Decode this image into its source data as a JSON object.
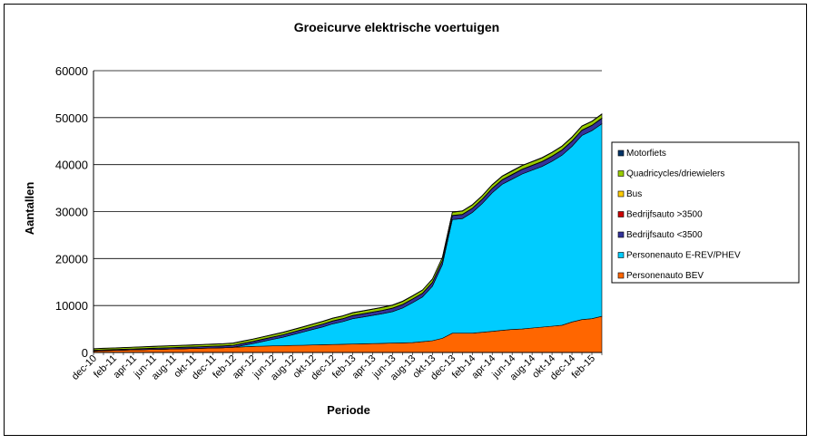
{
  "chart_data": {
    "type": "area",
    "stacked": true,
    "title": "Groeicurve elektrische voertuigen",
    "xlabel": "Periode",
    "ylabel": "Aantallen",
    "ylim": [
      0,
      60000
    ],
    "yticks": [
      0,
      10000,
      20000,
      30000,
      40000,
      50000,
      60000
    ],
    "grid": true,
    "legend_position": "right",
    "x": [
      "dec-10",
      "jan-11",
      "feb-11",
      "mrt-11",
      "apr-11",
      "mei-11",
      "jun-11",
      "jul-11",
      "aug-11",
      "sep-11",
      "okt-11",
      "nov-11",
      "dec-11",
      "jan-12",
      "feb-12",
      "mrt-12",
      "apr-12",
      "mei-12",
      "jun-12",
      "jul-12",
      "aug-12",
      "sep-12",
      "okt-12",
      "nov-12",
      "dec-12",
      "jan-13",
      "feb-13",
      "mrt-13",
      "apr-13",
      "mei-13",
      "jun-13",
      "jul-13",
      "aug-13",
      "sep-13",
      "okt-13",
      "nov-13",
      "dec-13",
      "jan-14",
      "feb-14",
      "mrt-14",
      "apr-14",
      "mei-14",
      "jun-14",
      "jul-14",
      "aug-14",
      "sep-14",
      "okt-14",
      "nov-14",
      "dec-14",
      "jan-15",
      "feb-15",
      "mrt-15"
    ],
    "xticks_shown": [
      "dec-10",
      "feb-11",
      "apr-11",
      "jun-11",
      "aug-11",
      "okt-11",
      "dec-11",
      "feb-12",
      "apr-12",
      "jun-12",
      "aug-12",
      "okt-12",
      "dec-12",
      "feb-13",
      "apr-13",
      "jun-13",
      "aug-13",
      "okt-13",
      "dec-13",
      "feb-14",
      "apr-14",
      "jun-14",
      "aug-14",
      "okt-14",
      "dec-14",
      "feb-15"
    ],
    "series": [
      {
        "name": "Personenauto BEV",
        "color": "#ff6600",
        "values": [
          300,
          400,
          450,
          500,
          550,
          600,
          650,
          700,
          750,
          800,
          850,
          900,
          950,
          1000,
          1100,
          1200,
          1300,
          1350,
          1400,
          1450,
          1500,
          1550,
          1600,
          1650,
          1700,
          1750,
          1800,
          1850,
          1900,
          1950,
          2000,
          2050,
          2100,
          2300,
          2500,
          3000,
          4100,
          4100,
          4100,
          4300,
          4500,
          4700,
          4900,
          5000,
          5200,
          5400,
          5600,
          5800,
          6500,
          7000,
          7200,
          7700
        ]
      },
      {
        "name": "Personenauto E-REV/PHEV",
        "color": "#00ccff",
        "values": [
          0,
          0,
          0,
          0,
          0,
          0,
          0,
          0,
          0,
          0,
          0,
          0,
          0,
          0,
          0,
          300,
          600,
          1000,
          1400,
          1800,
          2300,
          2800,
          3300,
          3800,
          4400,
          4800,
          5400,
          5700,
          6000,
          6300,
          6700,
          7400,
          8500,
          9500,
          11600,
          15700,
          24200,
          24400,
          25700,
          27400,
          29500,
          31100,
          32000,
          33000,
          33600,
          34200,
          35100,
          36200,
          37400,
          39200,
          40000,
          41000
        ]
      },
      {
        "name": "Bedrijfsauto <3500",
        "color": "#333399",
        "values": [
          150,
          150,
          150,
          180,
          200,
          220,
          240,
          260,
          280,
          300,
          320,
          340,
          360,
          380,
          400,
          420,
          440,
          460,
          480,
          500,
          520,
          540,
          560,
          580,
          600,
          620,
          640,
          660,
          680,
          700,
          720,
          740,
          760,
          780,
          800,
          820,
          840,
          860,
          880,
          900,
          920,
          940,
          960,
          980,
          1000,
          1020,
          1040,
          1060,
          1080,
          1100,
          1120,
          1140
        ]
      },
      {
        "name": "Bedrijfsauto >3500",
        "color": "#cc0000",
        "values": [
          10,
          10,
          10,
          10,
          10,
          10,
          10,
          10,
          10,
          10,
          10,
          10,
          10,
          10,
          10,
          10,
          10,
          10,
          10,
          10,
          10,
          10,
          10,
          10,
          10,
          10,
          10,
          10,
          10,
          10,
          10,
          10,
          10,
          10,
          10,
          10,
          10,
          10,
          10,
          10,
          10,
          10,
          10,
          10,
          10,
          10,
          10,
          10,
          10,
          10,
          10,
          10
        ]
      },
      {
        "name": "Bus",
        "color": "#ffcc00",
        "values": [
          20,
          20,
          20,
          20,
          20,
          20,
          20,
          20,
          20,
          20,
          20,
          20,
          30,
          30,
          30,
          30,
          30,
          30,
          30,
          30,
          30,
          30,
          30,
          30,
          40,
          40,
          40,
          40,
          40,
          40,
          40,
          40,
          40,
          40,
          50,
          50,
          50,
          50,
          50,
          50,
          50,
          50,
          50,
          50,
          50,
          50,
          60,
          60,
          60,
          60,
          60,
          60
        ]
      },
      {
        "name": "Quadricycles/driewielers",
        "color": "#99cc00",
        "values": [
          300,
          300,
          310,
          320,
          330,
          340,
          350,
          360,
          370,
          380,
          390,
          400,
          410,
          420,
          430,
          440,
          450,
          460,
          470,
          480,
          490,
          500,
          510,
          520,
          530,
          540,
          550,
          560,
          570,
          580,
          590,
          600,
          610,
          620,
          630,
          640,
          650,
          660,
          670,
          680,
          690,
          700,
          710,
          720,
          730,
          740,
          750,
          760,
          770,
          780,
          790,
          800
        ]
      },
      {
        "name": "Motorfiets",
        "color": "#003366",
        "values": [
          50,
          50,
          50,
          50,
          50,
          50,
          60,
          60,
          60,
          60,
          60,
          60,
          60,
          60,
          70,
          70,
          70,
          70,
          70,
          70,
          70,
          70,
          80,
          80,
          80,
          80,
          80,
          80,
          80,
          80,
          90,
          90,
          90,
          90,
          90,
          90,
          90,
          90,
          90,
          100,
          100,
          100,
          100,
          100,
          100,
          100,
          100,
          100,
          100,
          100,
          100,
          100
        ]
      }
    ]
  }
}
